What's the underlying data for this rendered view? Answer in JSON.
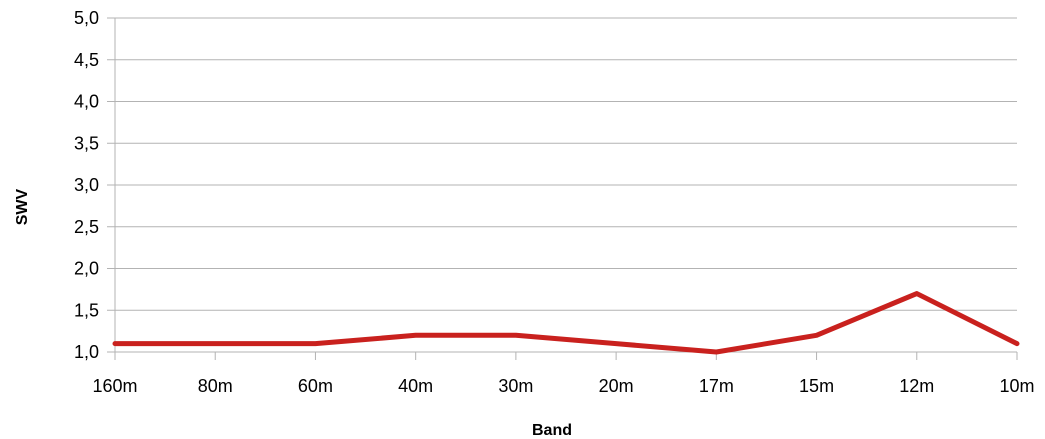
{
  "chart_data": {
    "type": "line",
    "title": "",
    "xlabel": "Band",
    "ylabel": "SWV",
    "categories": [
      "160m",
      "80m",
      "60m",
      "40m",
      "30m",
      "20m",
      "17m",
      "15m",
      "12m",
      "10m"
    ],
    "series": [
      {
        "values": [
          1.1,
          1.1,
          1.1,
          1.2,
          1.2,
          1.1,
          1.0,
          1.2,
          1.7,
          1.1
        ]
      }
    ],
    "ylim": [
      1.0,
      5.0
    ],
    "yticks": [
      "1,0",
      "1,5",
      "2,0",
      "2,5",
      "3,0",
      "3,5",
      "4,0",
      "4,5",
      "5,0"
    ],
    "ytick_values": [
      1.0,
      1.5,
      2.0,
      2.5,
      3.0,
      3.5,
      4.0,
      4.5,
      5.0
    ],
    "grid": true,
    "legend": "none",
    "colors": {
      "series": "#c9211e",
      "grid": "#b3b3b3"
    }
  }
}
